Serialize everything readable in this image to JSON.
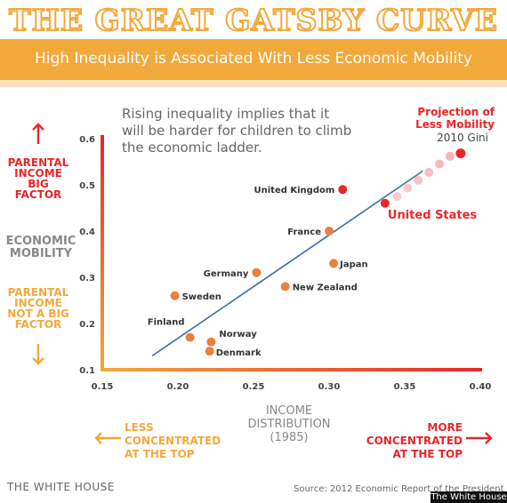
{
  "header": {
    "title": "THE GREAT GATSBY CURVE",
    "subtitle": "High Inequality is Associated With Less Economic Mobility"
  },
  "annotation": {
    "line1": "Rising inequality implies that it",
    "line2": "will be harder for children to climb",
    "line3": "the economic ladder."
  },
  "projection": {
    "line1": "Projection of",
    "line2": "Less Mobility",
    "line3": "2010 Gini"
  },
  "y_side": {
    "top": [
      "PARENTAL",
      "INCOME",
      "BIG",
      "FACTOR"
    ],
    "middle": [
      "ECONOMIC",
      "MOBILITY"
    ],
    "bottom": [
      "PARENTAL",
      "INCOME",
      "NOT A BIG",
      "FACTOR"
    ]
  },
  "x_side": {
    "left": [
      "LESS",
      "CONCENTRATED",
      "AT THE TOP"
    ],
    "center": [
      "INCOME",
      "DISTRIBUTION",
      "(1985)"
    ],
    "right": [
      "MORE",
      "CONCENTRATED",
      "AT THE TOP"
    ]
  },
  "footer": {
    "source": "THE WHITE HOUSE",
    "credit": "Source: 2012 Economic Report of the President",
    "watermark": "The White House"
  },
  "colors": {
    "orange": "#f2a93b",
    "point_orange": "#e8823a",
    "red": "#e8262a",
    "pink": "#f5a0a8",
    "line": "#3b6ea5",
    "gray": "#777777"
  },
  "chart_data": {
    "type": "scatter",
    "xlim": [
      0.15,
      0.4
    ],
    "ylim": [
      0.1,
      0.6
    ],
    "xticks": [
      "0.15",
      "0.20",
      "0.25",
      "0.30",
      "0.35",
      "0.40"
    ],
    "yticks": [
      "0.1",
      "0.2",
      "0.3",
      "0.4",
      "0.5",
      "0.6"
    ],
    "points": [
      {
        "label": "Finland",
        "x": 0.208,
        "y": 0.17
      },
      {
        "label": "Norway",
        "x": 0.222,
        "y": 0.16
      },
      {
        "label": "Denmark",
        "x": 0.221,
        "y": 0.14
      },
      {
        "label": "Sweden",
        "x": 0.198,
        "y": 0.26
      },
      {
        "label": "Germany",
        "x": 0.252,
        "y": 0.31
      },
      {
        "label": "New Zealand",
        "x": 0.271,
        "y": 0.28
      },
      {
        "label": "Japan",
        "x": 0.303,
        "y": 0.33
      },
      {
        "label": "France",
        "x": 0.3,
        "y": 0.4
      },
      {
        "label": "United Kingdom",
        "x": 0.309,
        "y": 0.49
      },
      {
        "label": "United States",
        "x": 0.337,
        "y": 0.46
      }
    ],
    "trendline": {
      "x": [
        0.183,
        0.362
      ],
      "y": [
        0.13,
        0.53
      ]
    },
    "projection_points": [
      {
        "x": 0.345,
        "y": 0.475
      },
      {
        "x": 0.352,
        "y": 0.493
      },
      {
        "x": 0.359,
        "y": 0.51
      },
      {
        "x": 0.366,
        "y": 0.527
      },
      {
        "x": 0.373,
        "y": 0.545
      },
      {
        "x": 0.38,
        "y": 0.562
      },
      {
        "x": 0.387,
        "y": 0.568
      }
    ]
  }
}
